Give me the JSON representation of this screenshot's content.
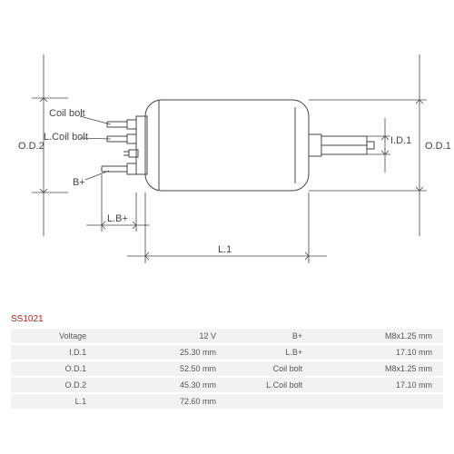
{
  "part_id": "SS1021",
  "diagram": {
    "labels": {
      "coil_bolt": "Coil bolt",
      "l_coil_bolt": "L.Coil bolt",
      "b_plus": "B+",
      "l_b_plus": "L.B+",
      "l1": "L.1",
      "od1": "O.D.1",
      "od2": "O.D.2",
      "id1": "I.D.1"
    },
    "stroke": "#444444",
    "stroke_width": 1
  },
  "specs": {
    "rows": [
      {
        "l1": "Voltage",
        "v1": "12 V",
        "l2": "B+",
        "v2": "M8x1.25 mm"
      },
      {
        "l1": "I.D.1",
        "v1": "25.30 mm",
        "l2": "L.B+",
        "v2": "17.10 mm"
      },
      {
        "l1": "O.D.1",
        "v1": "52.50 mm",
        "l2": "Coil bolt",
        "v2": "M8x1.25 mm"
      },
      {
        "l1": "O.D.2",
        "v1": "45.30 mm",
        "l2": "L.Coil bolt",
        "v2": "17.10 mm"
      },
      {
        "l1": "L.1",
        "v1": "72.60 mm",
        "l2": "",
        "v2": ""
      }
    ]
  }
}
